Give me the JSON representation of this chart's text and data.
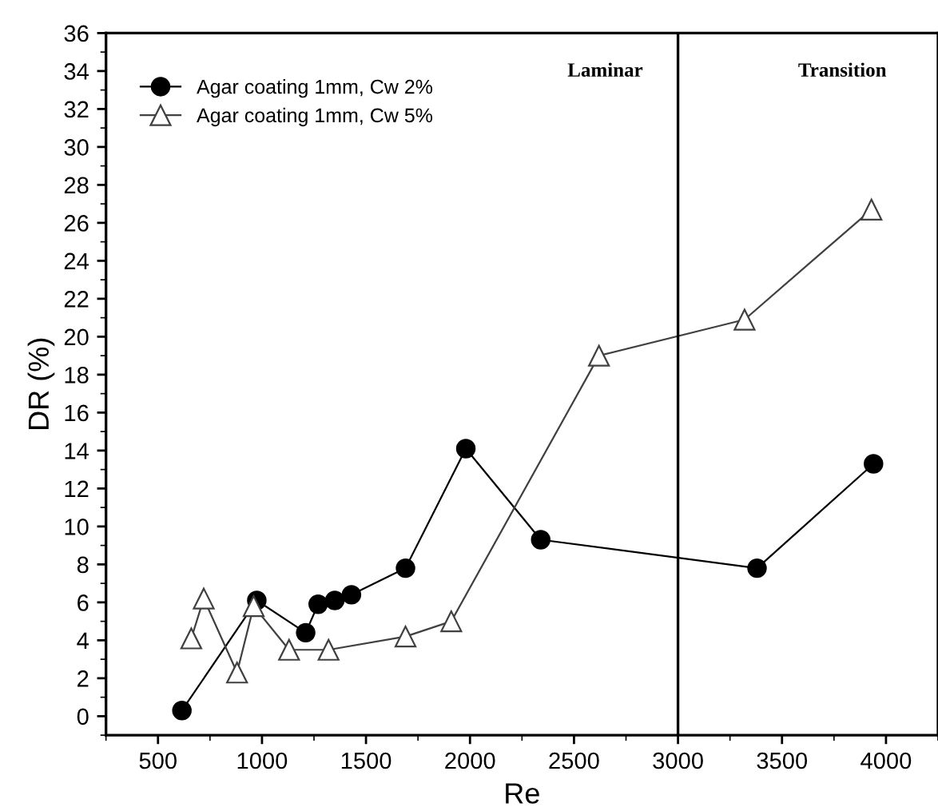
{
  "chart_data": {
    "type": "line",
    "xlabel": "Re",
    "ylabel": "DR (%)",
    "xlim": [
      250,
      4250
    ],
    "ylim": [
      -1,
      36
    ],
    "xticks": [
      500,
      1000,
      1500,
      2000,
      2500,
      3000,
      3500,
      4000
    ],
    "yticks": [
      0,
      2,
      4,
      6,
      8,
      10,
      12,
      14,
      16,
      18,
      20,
      22,
      24,
      26,
      28,
      30,
      32,
      34,
      36
    ],
    "grid": false,
    "legend": "top left",
    "line_style": "solid",
    "series": [
      {
        "name": "Agar coating 1mm, Cw 2%",
        "color": "#000000",
        "marker": "circle",
        "x": [
          615,
          975,
          1210,
          1270,
          1350,
          1430,
          1690,
          1980,
          2340,
          3380,
          3940
        ],
        "values": [
          0.3,
          6.1,
          4.4,
          5.9,
          6.1,
          6.4,
          7.8,
          14.1,
          9.3,
          7.8,
          13.3
        ]
      },
      {
        "name": "Agar coating 1mm, Cw 5%",
        "color": "#404040",
        "marker": "triangle",
        "x": [
          660,
          720,
          880,
          960,
          1130,
          1320,
          1690,
          1910,
          2620,
          3320,
          3930
        ],
        "values": [
          4.1,
          6.2,
          2.3,
          5.8,
          3.5,
          3.5,
          4.2,
          5.0,
          19.0,
          20.9,
          26.7
        ]
      }
    ],
    "ref_lines": [
      {
        "axis": "x",
        "value": 3000,
        "color": "#000000",
        "line_style": "solid"
      }
    ],
    "annotations": [
      "Laminar",
      "Transition"
    ]
  }
}
